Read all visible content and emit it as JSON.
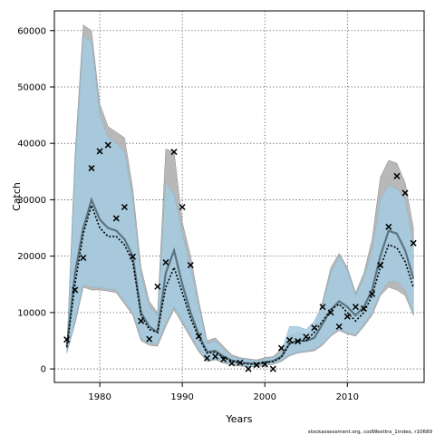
{
  "chart_data": {
    "type": "line",
    "title": "",
    "xlabel": "Years",
    "ylabel": "Catch",
    "xlim": [
      1974.5,
      2019.3
    ],
    "ylim": [
      -2400,
      63500
    ],
    "x_ticks": [
      1980,
      1990,
      2000,
      2010
    ],
    "y_ticks": [
      0,
      10000,
      20000,
      30000,
      40000,
      50000,
      60000
    ],
    "grid": true,
    "footnote": "stockassessment.org, codWestIns_1index, r10689",
    "colors": {
      "band_gray": "#b0b0b0",
      "band_blue": "#a3cbe0",
      "band_overlap": "#8fb8cc",
      "line_main": "#5a7480",
      "line_dotted": "#000000",
      "markers": "#000000"
    },
    "years": [
      1976,
      1977,
      1978,
      1979,
      1980,
      1981,
      1982,
      1983,
      1984,
      1985,
      1986,
      1987,
      1988,
      1989,
      1990,
      1991,
      1992,
      1993,
      1994,
      1995,
      1996,
      1997,
      1998,
      1999,
      2000,
      2001,
      2002,
      2003,
      2004,
      2005,
      2006,
      2007,
      2008,
      2009,
      2010,
      2011,
      2012,
      2013,
      2014,
      2015,
      2016,
      2017,
      2018
    ],
    "series": [
      {
        "name": "upper_gray",
        "values": [
          3500,
          38000,
          61000,
          60000,
          47000,
          43000,
          42000,
          41000,
          32000,
          18000,
          12000,
          10000,
          39000,
          38500,
          26000,
          20000,
          12000,
          5000,
          5500,
          4000,
          2500,
          2000,
          1800,
          1600,
          2000,
          2200,
          3500,
          6000,
          6500,
          6000,
          7500,
          12000,
          18000,
          20500,
          18000,
          13500,
          17000,
          23000,
          34000,
          37000,
          36500,
          33000,
          25000
        ]
      },
      {
        "name": "upper_blue",
        "values": [
          3000,
          36000,
          59000,
          58000,
          45000,
          41000,
          40000,
          38500,
          30000,
          16500,
          11000,
          9500,
          33000,
          31000,
          24000,
          18000,
          11000,
          4500,
          5000,
          3500,
          2200,
          1800,
          1600,
          1400,
          1800,
          2000,
          3000,
          7500,
          7500,
          7000,
          8500,
          11500,
          17000,
          20000,
          17500,
          13000,
          16000,
          21000,
          30000,
          32500,
          32000,
          30000,
          22000
        ]
      },
      {
        "name": "lower_blue",
        "values": [
          2800,
          8500,
          15000,
          14500,
          14500,
          14200,
          14000,
          12000,
          10000,
          5500,
          4500,
          4500,
          8000,
          11000,
          8500,
          6000,
          3500,
          1500,
          1800,
          1200,
          800,
          600,
          500,
          500,
          700,
          900,
          1500,
          2500,
          3000,
          3200,
          3500,
          4500,
          6000,
          7000,
          6500,
          6000,
          8000,
          10000,
          13500,
          15500,
          15500,
          14000,
          10000
        ]
      },
      {
        "name": "lower_gray",
        "values": [
          2800,
          8000,
          14500,
          14000,
          14000,
          13800,
          13500,
          11500,
          9500,
          5000,
          4200,
          4000,
          7500,
          10500,
          8000,
          5500,
          3000,
          1300,
          1600,
          1000,
          700,
          500,
          400,
          400,
          600,
          800,
          1300,
          2300,
          2800,
          3000,
          3200,
          4200,
          5800,
          6800,
          6200,
          5800,
          7500,
          9500,
          13000,
          14500,
          14000,
          13000,
          9500
        ]
      },
      {
        "name": "estimate",
        "values": [
          4000,
          17000,
          25000,
          30000,
          26500,
          25000,
          24500,
          23000,
          20000,
          10000,
          7500,
          6500,
          17000,
          21000,
          15000,
          10000,
          6000,
          3000,
          3200,
          2200,
          1500,
          1100,
          1000,
          900,
          1200,
          1400,
          2200,
          4500,
          5000,
          5000,
          5500,
          8000,
          10500,
          12000,
          11000,
          9500,
          11000,
          14000,
          20000,
          24500,
          24000,
          21000,
          16000
        ]
      },
      {
        "name": "estimate_dotted",
        "values": [
          3800,
          15000,
          24000,
          29000,
          25000,
          23500,
          23500,
          22000,
          19000,
          9500,
          7000,
          6500,
          14500,
          18000,
          13500,
          9000,
          5500,
          2800,
          3000,
          2000,
          1400,
          1000,
          900,
          800,
          1100,
          1300,
          2000,
          4500,
          5000,
          5000,
          6500,
          8500,
          10500,
          11500,
          10000,
          8500,
          10000,
          13000,
          18000,
          22000,
          21500,
          19000,
          14500
        ]
      }
    ],
    "observed": {
      "x": [
        1976,
        1977,
        1978,
        1979,
        1980,
        1981,
        1982,
        1983,
        1984,
        1985,
        1986,
        1987,
        1988,
        1989,
        1990,
        1991,
        1992,
        1993,
        1994,
        1995,
        1996,
        1997,
        1998,
        1999,
        2000,
        2001,
        2002,
        2003,
        2004,
        2005,
        2006,
        2007,
        2008,
        2009,
        2010,
        2011,
        2012,
        2013,
        2014,
        2015,
        2016,
        2017,
        2018
      ],
      "y": [
        5200,
        14000,
        19700,
        35600,
        38600,
        39700,
        26700,
        28700,
        19900,
        8500,
        5300,
        14600,
        18900,
        38500,
        28700,
        18400,
        5800,
        1900,
        2200,
        1700,
        1000,
        1100,
        0,
        700,
        800,
        0,
        3700,
        5100,
        4900,
        5700,
        7300,
        11000,
        10000,
        7500,
        9300,
        11000,
        10700,
        13300,
        18400,
        25200,
        34200,
        31200,
        22300
      ]
    }
  }
}
